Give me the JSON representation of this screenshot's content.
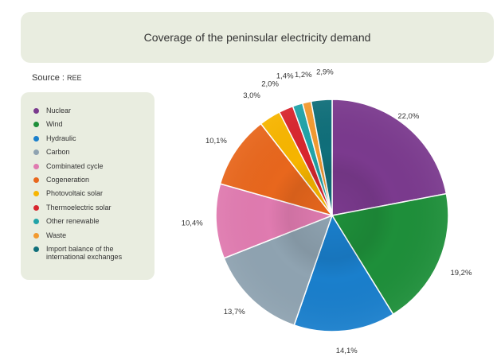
{
  "title": "Coverage of the peninsular electricity demand",
  "source": {
    "label": "Source :",
    "value": "REE"
  },
  "chart_data": {
    "type": "pie",
    "title": "Coverage of the peninsular electricity demand",
    "legend_position": "left",
    "slices": [
      {
        "name": "Nuclear",
        "value": 22.0,
        "label": "22,0%",
        "color": "#7b3a8e"
      },
      {
        "name": "Wind",
        "value": 19.2,
        "label": "19,2%",
        "color": "#1e8f3a"
      },
      {
        "name": "Hydraulic",
        "value": 14.1,
        "label": "14,1%",
        "color": "#1a7fcc"
      },
      {
        "name": "Carbon",
        "value": 13.7,
        "label": "13,7%",
        "color": "#8fa3b1"
      },
      {
        "name": "Combinated cycle",
        "value": 10.4,
        "label": "10,4%",
        "color": "#e07bb0"
      },
      {
        "name": "Cogeneration",
        "value": 10.1,
        "label": "10,1%",
        "color": "#e8671d"
      },
      {
        "name": "Photovoltaic solar",
        "value": 3.0,
        "label": "3,0%",
        "color": "#f7b500"
      },
      {
        "name": "Thermoelectric solar",
        "value": 2.0,
        "label": "2,0%",
        "color": "#d8262e"
      },
      {
        "name": "Other renewable",
        "value": 1.4,
        "label": "1,4%",
        "color": "#21a3a8"
      },
      {
        "name": "Waste",
        "value": 1.2,
        "label": "1,2%",
        "color": "#f29a30"
      },
      {
        "name": "Import balance of the international exchanges",
        "value": 2.9,
        "label": "2,9%",
        "color": "#106f7a"
      }
    ]
  }
}
